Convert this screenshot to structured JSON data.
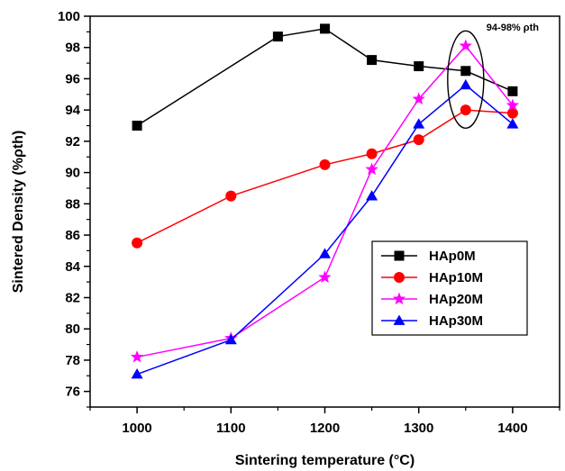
{
  "chart_data": {
    "type": "line",
    "xlabel": "Sintering temperature (°C)",
    "ylabel": "Sintered Density (%ρth)",
    "xlim": [
      950,
      1450
    ],
    "ylim": [
      75,
      100
    ],
    "xticks": [
      1000,
      1100,
      1200,
      1300,
      1400
    ],
    "xtick_labels": [
      "1000",
      "1100",
      "1200",
      "1300",
      "1400"
    ],
    "yticks": [
      76,
      78,
      80,
      82,
      84,
      86,
      88,
      90,
      92,
      94,
      96,
      98,
      100
    ],
    "ytick_labels": [
      "76",
      "78",
      "80",
      "82",
      "84",
      "86",
      "88",
      "90",
      "92",
      "94",
      "96",
      "98",
      "100"
    ],
    "grid": false,
    "legend_position": "center-right",
    "annotation": {
      "text": "94-98% ρth",
      "target": "ellipse around x = 1350 data points"
    },
    "series": [
      {
        "name": "HAp0M",
        "color": "#000000",
        "marker": "square",
        "x": [
          1000,
          1150,
          1200,
          1250,
          1300,
          1350,
          1400
        ],
        "y": [
          93.0,
          98.7,
          99.2,
          97.2,
          96.8,
          96.5,
          95.2
        ]
      },
      {
        "name": "HAp10M",
        "color": "#ff0000",
        "marker": "circle",
        "x": [
          1000,
          1100,
          1200,
          1250,
          1300,
          1350,
          1400
        ],
        "y": [
          85.5,
          88.5,
          90.5,
          91.2,
          92.1,
          94.0,
          93.8
        ]
      },
      {
        "name": "HAp20M",
        "color": "#ff00ff",
        "marker": "star",
        "x": [
          1000,
          1100,
          1200,
          1250,
          1300,
          1350,
          1400
        ],
        "y": [
          78.2,
          79.4,
          83.3,
          90.2,
          94.7,
          98.1,
          94.3
        ]
      },
      {
        "name": "HAp30M",
        "color": "#0000ff",
        "marker": "triangle",
        "x": [
          1000,
          1100,
          1200,
          1250,
          1300,
          1350,
          1400
        ],
        "y": [
          77.1,
          79.3,
          84.8,
          88.5,
          93.1,
          95.6,
          93.1
        ]
      }
    ]
  }
}
